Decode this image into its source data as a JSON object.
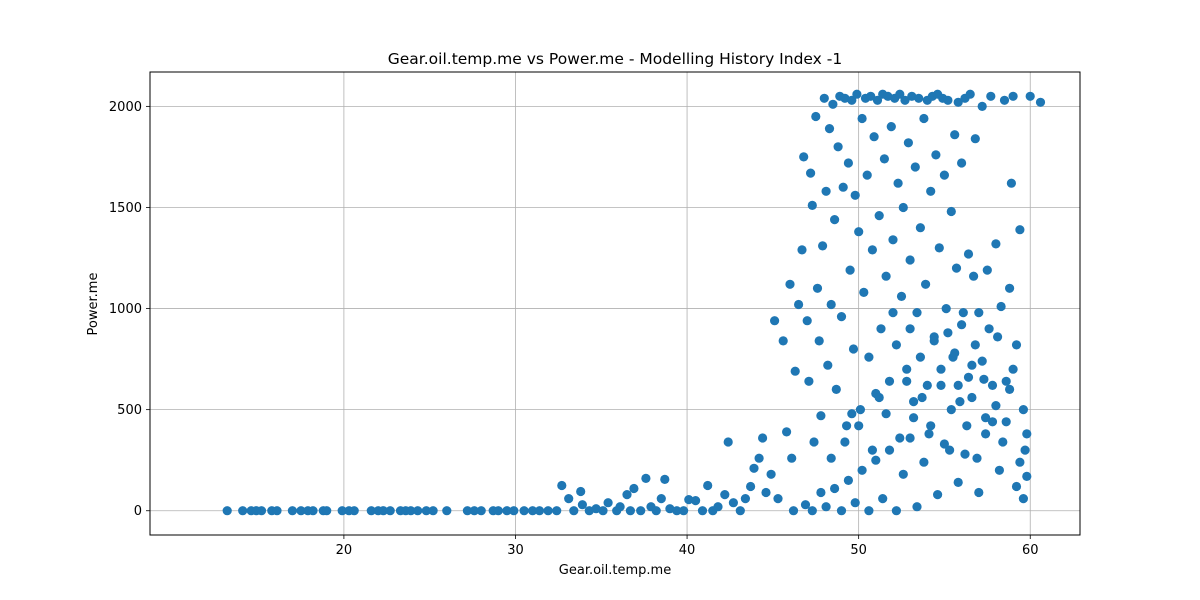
{
  "chart_data": {
    "type": "scatter",
    "title": "Gear.oil.temp.me vs Power.me - Modelling History Index -1",
    "xlabel": "Gear.oil.temp.me",
    "ylabel": "Power.me",
    "xlim": [
      8.7,
      62.9
    ],
    "ylim": [
      -120,
      2170
    ],
    "xticks": [
      20,
      30,
      40,
      50,
      60
    ],
    "yticks": [
      0,
      500,
      1000,
      1500,
      2000
    ],
    "grid": true,
    "color": "#1f77b4",
    "series": [
      {
        "name": "",
        "points": [
          [
            13.2,
            0
          ],
          [
            14.1,
            0
          ],
          [
            14.6,
            0
          ],
          [
            14.9,
            0
          ],
          [
            15.2,
            0
          ],
          [
            15.8,
            0
          ],
          [
            16.1,
            0
          ],
          [
            17.0,
            0
          ],
          [
            17.5,
            0
          ],
          [
            17.9,
            0
          ],
          [
            18.2,
            0
          ],
          [
            18.8,
            0
          ],
          [
            19.0,
            0
          ],
          [
            19.9,
            0
          ],
          [
            20.3,
            0
          ],
          [
            20.6,
            0
          ],
          [
            21.6,
            0
          ],
          [
            22.0,
            0
          ],
          [
            22.3,
            0
          ],
          [
            22.7,
            0
          ],
          [
            23.3,
            0
          ],
          [
            23.6,
            0
          ],
          [
            23.9,
            0
          ],
          [
            24.3,
            0
          ],
          [
            24.8,
            0
          ],
          [
            25.2,
            0
          ],
          [
            26.0,
            0
          ],
          [
            27.2,
            0
          ],
          [
            27.6,
            0
          ],
          [
            28.0,
            0
          ],
          [
            28.7,
            0
          ],
          [
            29.0,
            0
          ],
          [
            29.5,
            0
          ],
          [
            29.9,
            0
          ],
          [
            30.5,
            0
          ],
          [
            31.0,
            0
          ],
          [
            31.4,
            0
          ],
          [
            31.9,
            0
          ],
          [
            32.4,
            0
          ],
          [
            32.7,
            125
          ],
          [
            33.1,
            60
          ],
          [
            33.4,
            0
          ],
          [
            33.8,
            95
          ],
          [
            33.9,
            30
          ],
          [
            34.3,
            0
          ],
          [
            34.7,
            10
          ],
          [
            35.1,
            0
          ],
          [
            35.4,
            40
          ],
          [
            35.9,
            0
          ],
          [
            36.1,
            20
          ],
          [
            36.5,
            80
          ],
          [
            36.7,
            0
          ],
          [
            36.9,
            110
          ],
          [
            37.3,
            0
          ],
          [
            37.6,
            160
          ],
          [
            37.9,
            20
          ],
          [
            38.2,
            0
          ],
          [
            38.5,
            60
          ],
          [
            38.7,
            155
          ],
          [
            39.0,
            10
          ],
          [
            39.4,
            0
          ],
          [
            39.8,
            0
          ],
          [
            40.1,
            55
          ],
          [
            40.5,
            50
          ],
          [
            40.9,
            0
          ],
          [
            41.2,
            125
          ],
          [
            41.5,
            0
          ],
          [
            41.8,
            20
          ],
          [
            42.2,
            80
          ],
          [
            42.4,
            340
          ],
          [
            42.7,
            40
          ],
          [
            43.1,
            0
          ],
          [
            43.4,
            60
          ],
          [
            43.7,
            120
          ],
          [
            43.9,
            210
          ],
          [
            44.2,
            260
          ],
          [
            44.4,
            360
          ],
          [
            44.6,
            90
          ],
          [
            44.9,
            180
          ],
          [
            45.1,
            940
          ],
          [
            45.3,
            60
          ],
          [
            45.6,
            840
          ],
          [
            45.8,
            390
          ],
          [
            46.0,
            1120
          ],
          [
            46.1,
            260
          ],
          [
            46.3,
            690
          ],
          [
            46.5,
            1020
          ],
          [
            46.7,
            1290
          ],
          [
            46.8,
            1750
          ],
          [
            47.0,
            940
          ],
          [
            47.1,
            640
          ],
          [
            47.2,
            1670
          ],
          [
            47.3,
            1510
          ],
          [
            47.4,
            340
          ],
          [
            47.5,
            1950
          ],
          [
            47.6,
            1100
          ],
          [
            47.7,
            840
          ],
          [
            47.8,
            470
          ],
          [
            47.9,
            1310
          ],
          [
            48.0,
            2040
          ],
          [
            48.1,
            1580
          ],
          [
            48.2,
            720
          ],
          [
            48.3,
            1890
          ],
          [
            48.4,
            1020
          ],
          [
            48.5,
            2010
          ],
          [
            48.6,
            1440
          ],
          [
            48.7,
            600
          ],
          [
            48.8,
            1800
          ],
          [
            48.9,
            2050
          ],
          [
            49.0,
            960
          ],
          [
            49.1,
            1600
          ],
          [
            49.2,
            2040
          ],
          [
            49.3,
            420
          ],
          [
            49.4,
            1720
          ],
          [
            49.5,
            1190
          ],
          [
            49.6,
            2030
          ],
          [
            49.7,
            800
          ],
          [
            49.8,
            1560
          ],
          [
            49.9,
            2060
          ],
          [
            50.0,
            1380
          ],
          [
            50.1,
            500
          ],
          [
            50.2,
            1940
          ],
          [
            50.3,
            1080
          ],
          [
            50.4,
            2040
          ],
          [
            50.5,
            1660
          ],
          [
            50.6,
            760
          ],
          [
            50.7,
            2050
          ],
          [
            50.8,
            1290
          ],
          [
            50.9,
            1850
          ],
          [
            51.0,
            580
          ],
          [
            51.1,
            2030
          ],
          [
            51.2,
            1460
          ],
          [
            51.3,
            900
          ],
          [
            51.4,
            2060
          ],
          [
            51.5,
            1740
          ],
          [
            51.6,
            1160
          ],
          [
            51.7,
            2050
          ],
          [
            51.8,
            640
          ],
          [
            51.9,
            1900
          ],
          [
            52.0,
            1340
          ],
          [
            52.1,
            2040
          ],
          [
            52.2,
            820
          ],
          [
            52.3,
            1620
          ],
          [
            52.4,
            2060
          ],
          [
            52.5,
            1060
          ],
          [
            52.6,
            1500
          ],
          [
            52.7,
            2030
          ],
          [
            52.8,
            700
          ],
          [
            52.9,
            1820
          ],
          [
            53.0,
            1240
          ],
          [
            53.1,
            2050
          ],
          [
            53.2,
            460
          ],
          [
            53.3,
            1700
          ],
          [
            53.4,
            980
          ],
          [
            53.5,
            2040
          ],
          [
            53.6,
            1400
          ],
          [
            53.7,
            560
          ],
          [
            53.8,
            1940
          ],
          [
            53.9,
            1120
          ],
          [
            54.0,
            2030
          ],
          [
            54.1,
            380
          ],
          [
            54.2,
            1580
          ],
          [
            54.3,
            2050
          ],
          [
            54.4,
            860
          ],
          [
            54.5,
            1760
          ],
          [
            54.6,
            2060
          ],
          [
            54.7,
            1300
          ],
          [
            54.8,
            620
          ],
          [
            54.9,
            2040
          ],
          [
            55.0,
            1660
          ],
          [
            55.1,
            1000
          ],
          [
            55.2,
            2030
          ],
          [
            55.3,
            300
          ],
          [
            55.4,
            1480
          ],
          [
            55.5,
            760
          ],
          [
            55.6,
            1860
          ],
          [
            55.7,
            1200
          ],
          [
            55.8,
            2020
          ],
          [
            55.9,
            540
          ],
          [
            56.0,
            1720
          ],
          [
            56.1,
            980
          ],
          [
            56.2,
            2040
          ],
          [
            56.3,
            420
          ],
          [
            56.4,
            1270
          ],
          [
            56.5,
            2060
          ],
          [
            56.6,
            720
          ],
          [
            56.7,
            1160
          ],
          [
            56.8,
            1840
          ],
          [
            56.9,
            260
          ],
          [
            57.0,
            980
          ],
          [
            57.2,
            2000
          ],
          [
            57.3,
            650
          ],
          [
            57.5,
            1190
          ],
          [
            57.7,
            2050
          ],
          [
            57.8,
            440
          ],
          [
            58.0,
            1320
          ],
          [
            58.1,
            860
          ],
          [
            58.3,
            1010
          ],
          [
            58.5,
            2030
          ],
          [
            58.6,
            640
          ],
          [
            58.8,
            1100
          ],
          [
            58.9,
            1620
          ],
          [
            59.0,
            2050
          ],
          [
            59.2,
            820
          ],
          [
            59.4,
            1390
          ],
          [
            59.6,
            500
          ],
          [
            59.7,
            300
          ],
          [
            59.8,
            170
          ],
          [
            60.0,
            2050
          ],
          [
            60.6,
            2020
          ],
          [
            46.2,
            0
          ],
          [
            46.9,
            30
          ],
          [
            47.3,
            0
          ],
          [
            47.8,
            90
          ],
          [
            48.1,
            20
          ],
          [
            48.6,
            110
          ],
          [
            49.0,
            0
          ],
          [
            49.4,
            150
          ],
          [
            49.8,
            40
          ],
          [
            50.2,
            200
          ],
          [
            50.6,
            0
          ],
          [
            51.0,
            250
          ],
          [
            51.4,
            60
          ],
          [
            51.8,
            300
          ],
          [
            52.2,
            0
          ],
          [
            52.6,
            180
          ],
          [
            53.0,
            360
          ],
          [
            53.4,
            20
          ],
          [
            53.8,
            240
          ],
          [
            54.2,
            420
          ],
          [
            54.6,
            80
          ],
          [
            55.0,
            330
          ],
          [
            55.4,
            500
          ],
          [
            55.8,
            140
          ],
          [
            56.2,
            280
          ],
          [
            56.6,
            560
          ],
          [
            57.0,
            90
          ],
          [
            57.4,
            380
          ],
          [
            57.8,
            620
          ],
          [
            58.2,
            200
          ],
          [
            58.6,
            440
          ],
          [
            59.0,
            700
          ],
          [
            59.4,
            240
          ],
          [
            59.8,
            380
          ],
          [
            48.4,
            260
          ],
          [
            49.2,
            340
          ],
          [
            50.0,
            420
          ],
          [
            50.8,
            300
          ],
          [
            51.6,
            480
          ],
          [
            52.4,
            360
          ],
          [
            53.2,
            540
          ],
          [
            54.0,
            620
          ],
          [
            54.8,
            700
          ],
          [
            55.6,
            780
          ],
          [
            56.4,
            660
          ],
          [
            57.2,
            740
          ],
          [
            58.0,
            520
          ],
          [
            58.8,
            600
          ],
          [
            55.2,
            880
          ],
          [
            56.0,
            920
          ],
          [
            56.8,
            820
          ],
          [
            57.6,
            900
          ],
          [
            53.6,
            760
          ],
          [
            52.8,
            640
          ],
          [
            51.2,
            560
          ],
          [
            49.6,
            480
          ],
          [
            54.4,
            840
          ],
          [
            53.0,
            900
          ],
          [
            52.0,
            980
          ],
          [
            55.8,
            620
          ],
          [
            57.4,
            460
          ],
          [
            58.4,
            340
          ],
          [
            59.2,
            120
          ],
          [
            59.6,
            60
          ]
        ]
      }
    ]
  }
}
